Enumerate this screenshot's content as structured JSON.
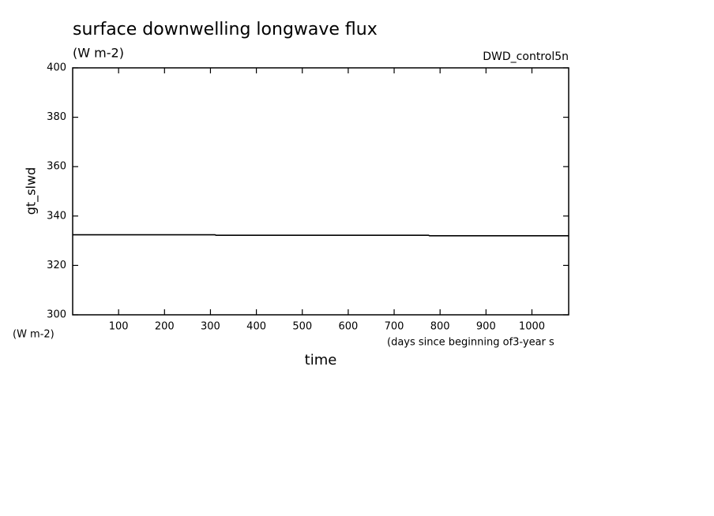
{
  "chart_data": {
    "type": "line",
    "title": "surface downwelling longwave flux",
    "subtitle": "(W m-2)",
    "annotation": "DWD_control5n",
    "ylabel": "gt_slwd",
    "yunits": "(W m-2)",
    "xlabel": "time",
    "xunits": "(days since beginning of3-year s",
    "x": [
      0,
      310,
      312,
      775,
      777,
      1080
    ],
    "series": [
      {
        "name": "gt_slwd",
        "color": "#000000",
        "values": [
          332.4,
          332.4,
          332.2,
          332.2,
          332.0,
          332.0
        ]
      }
    ],
    "xlim": [
      0,
      1080
    ],
    "ylim": [
      300,
      400
    ],
    "xticks": [
      100,
      200,
      300,
      400,
      500,
      600,
      700,
      800,
      900,
      1000
    ],
    "yticks": [
      300,
      320,
      340,
      360,
      380,
      400
    ]
  }
}
